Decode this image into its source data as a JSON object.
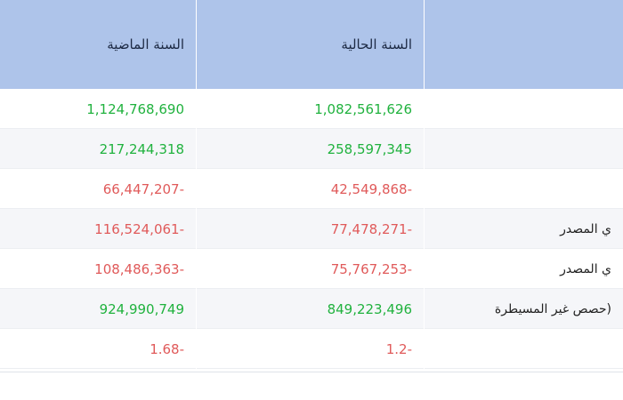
{
  "table": {
    "headers": {
      "last_year": "السنة الماضية",
      "current_year": "السنة الحالية",
      "item": ""
    },
    "rows": [
      {
        "label": "",
        "current": "1,082,561,626",
        "last": "1,124,768,690",
        "current_sign": "pos",
        "last_sign": "pos"
      },
      {
        "label": "",
        "current": "258,597,345",
        "last": "217,244,318",
        "current_sign": "pos",
        "last_sign": "pos"
      },
      {
        "label": "",
        "current": "42,549,868-",
        "last": "66,447,207-",
        "current_sign": "neg",
        "last_sign": "neg"
      },
      {
        "label": "ي المصدر",
        "current": "77,478,271-",
        "last": "116,524,061-",
        "current_sign": "neg",
        "last_sign": "neg"
      },
      {
        "label": "ي المصدر",
        "current": "75,767,253-",
        "last": "108,486,363-",
        "current_sign": "neg",
        "last_sign": "neg"
      },
      {
        "label": "حصص غير المسيطرة)",
        "current": "849,223,496",
        "last": "924,990,749",
        "current_sign": "pos",
        "last_sign": "pos"
      },
      {
        "label": "",
        "current": "1.2-",
        "last": "1.68-",
        "current_sign": "neg",
        "last_sign": "neg"
      }
    ]
  }
}
